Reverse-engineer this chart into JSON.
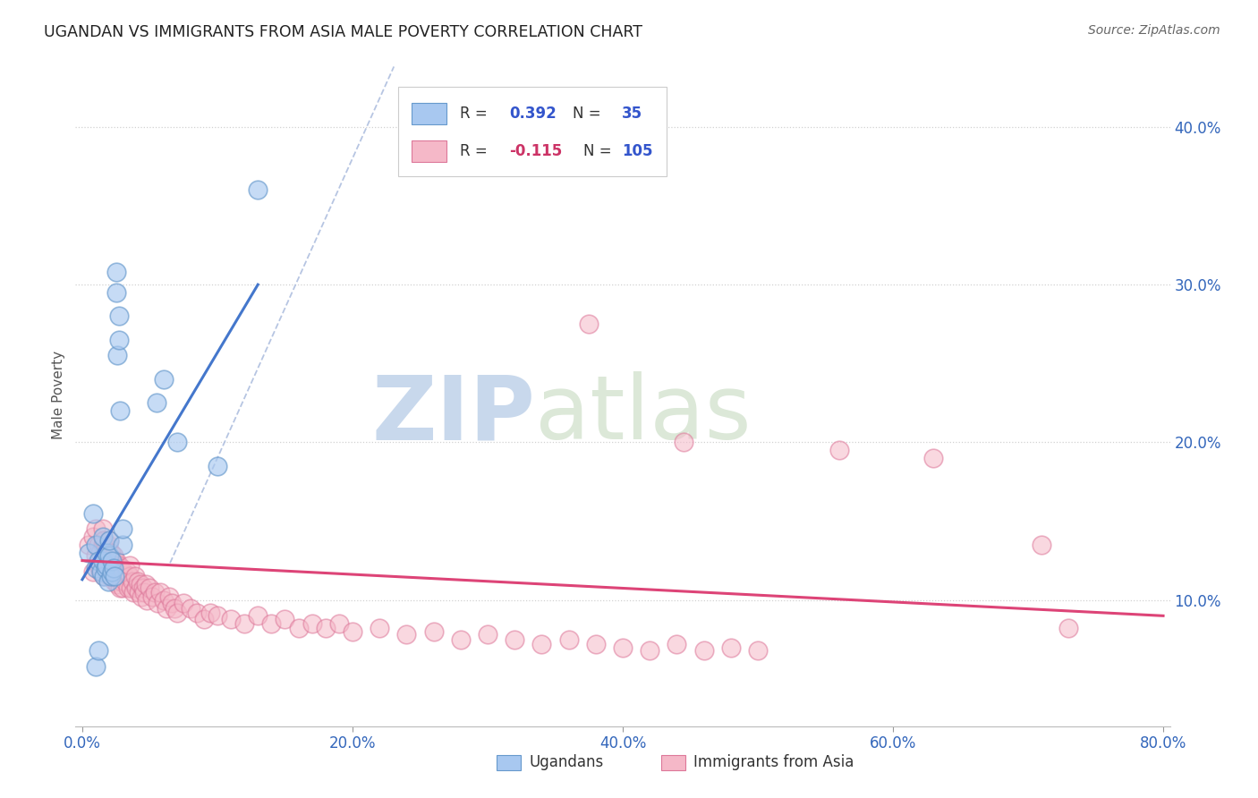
{
  "title": "UGANDAN VS IMMIGRANTS FROM ASIA MALE POVERTY CORRELATION CHART",
  "source": "Source: ZipAtlas.com",
  "ylabel": "Male Poverty",
  "xlim": [
    -0.005,
    0.805
  ],
  "ylim": [
    0.02,
    0.44
  ],
  "xlabel_tick_vals": [
    0.0,
    0.2,
    0.4,
    0.6,
    0.8
  ],
  "xlabel_ticks": [
    "0.0%",
    "20.0%",
    "40.0%",
    "60.0%",
    "80.0%"
  ],
  "ylabel_tick_vals": [
    0.1,
    0.2,
    0.3,
    0.4
  ],
  "ylabel_ticks": [
    "10.0%",
    "20.0%",
    "30.0%",
    "40.0%"
  ],
  "ugandan_color": "#a8c8f0",
  "ugandan_edge": "#6699cc",
  "asian_color": "#f5b8c8",
  "asian_edge": "#dd7799",
  "trendline_ugandan_color": "#4477cc",
  "trendline_asian_color": "#dd4477",
  "dash_color": "#aabbdd",
  "grid_color": "#cccccc",
  "watermark_color": "#d8e4f0",
  "ugandan_x": [
    0.005,
    0.008,
    0.01,
    0.01,
    0.012,
    0.014,
    0.015,
    0.015,
    0.016,
    0.017,
    0.018,
    0.018,
    0.019,
    0.02,
    0.02,
    0.021,
    0.022,
    0.022,
    0.023,
    0.024,
    0.025,
    0.025,
    0.026,
    0.027,
    0.027,
    0.028,
    0.03,
    0.03,
    0.055,
    0.06,
    0.07,
    0.1,
    0.01,
    0.012,
    0.13
  ],
  "ugandan_y": [
    0.13,
    0.155,
    0.12,
    0.135,
    0.125,
    0.118,
    0.125,
    0.14,
    0.115,
    0.12,
    0.122,
    0.13,
    0.112,
    0.128,
    0.138,
    0.115,
    0.118,
    0.125,
    0.12,
    0.115,
    0.295,
    0.308,
    0.255,
    0.265,
    0.28,
    0.22,
    0.135,
    0.145,
    0.225,
    0.24,
    0.2,
    0.185,
    0.058,
    0.068,
    0.36
  ],
  "asian_x": [
    0.005,
    0.008,
    0.008,
    0.01,
    0.01,
    0.012,
    0.012,
    0.013,
    0.013,
    0.014,
    0.015,
    0.015,
    0.015,
    0.016,
    0.016,
    0.016,
    0.017,
    0.017,
    0.018,
    0.018,
    0.019,
    0.019,
    0.02,
    0.02,
    0.02,
    0.021,
    0.021,
    0.022,
    0.022,
    0.023,
    0.023,
    0.024,
    0.024,
    0.025,
    0.025,
    0.026,
    0.026,
    0.027,
    0.027,
    0.028,
    0.028,
    0.029,
    0.029,
    0.03,
    0.03,
    0.032,
    0.033,
    0.034,
    0.035,
    0.035,
    0.036,
    0.037,
    0.038,
    0.039,
    0.04,
    0.041,
    0.042,
    0.043,
    0.044,
    0.045,
    0.046,
    0.047,
    0.048,
    0.05,
    0.052,
    0.054,
    0.056,
    0.058,
    0.06,
    0.062,
    0.064,
    0.066,
    0.068,
    0.07,
    0.075,
    0.08,
    0.085,
    0.09,
    0.095,
    0.1,
    0.11,
    0.12,
    0.13,
    0.14,
    0.15,
    0.16,
    0.17,
    0.18,
    0.19,
    0.2,
    0.22,
    0.24,
    0.26,
    0.28,
    0.3,
    0.32,
    0.34,
    0.36,
    0.38,
    0.4,
    0.42,
    0.44,
    0.46,
    0.48,
    0.5
  ],
  "asian_y": [
    0.135,
    0.118,
    0.14,
    0.128,
    0.145,
    0.122,
    0.135,
    0.118,
    0.13,
    0.12,
    0.125,
    0.135,
    0.145,
    0.115,
    0.128,
    0.138,
    0.12,
    0.132,
    0.118,
    0.128,
    0.122,
    0.135,
    0.115,
    0.125,
    0.138,
    0.12,
    0.13,
    0.115,
    0.125,
    0.118,
    0.128,
    0.112,
    0.122,
    0.115,
    0.125,
    0.11,
    0.12,
    0.115,
    0.122,
    0.108,
    0.118,
    0.112,
    0.12,
    0.108,
    0.118,
    0.112,
    0.118,
    0.108,
    0.115,
    0.122,
    0.108,
    0.112,
    0.105,
    0.115,
    0.108,
    0.112,
    0.105,
    0.11,
    0.102,
    0.108,
    0.105,
    0.11,
    0.1,
    0.108,
    0.102,
    0.105,
    0.098,
    0.105,
    0.1,
    0.095,
    0.102,
    0.098,
    0.095,
    0.092,
    0.098,
    0.095,
    0.092,
    0.088,
    0.092,
    0.09,
    0.088,
    0.085,
    0.09,
    0.085,
    0.088,
    0.082,
    0.085,
    0.082,
    0.085,
    0.08,
    0.082,
    0.078,
    0.08,
    0.075,
    0.078,
    0.075,
    0.072,
    0.075,
    0.072,
    0.07,
    0.068,
    0.072,
    0.068,
    0.07,
    0.068
  ],
  "asian_outliers_x": [
    0.375,
    0.445,
    0.56,
    0.63,
    0.71,
    0.73
  ],
  "asian_outliers_y": [
    0.275,
    0.2,
    0.195,
    0.19,
    0.135,
    0.082
  ],
  "background_color": "#ffffff"
}
